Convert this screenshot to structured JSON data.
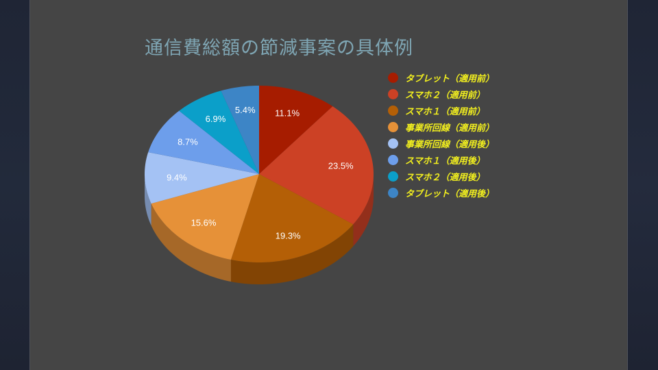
{
  "slide": {
    "title": "通信費総額の節減事案の具体例",
    "background": "#454545",
    "title_color": "#7fa6b4",
    "legend_text_color": "#f2ef1e"
  },
  "legend": [
    {
      "label": "タブレット（適用前）",
      "color": "#a61c00"
    },
    {
      "label": "スマホ２（適用前）",
      "color": "#cc4125"
    },
    {
      "label": "スマホ１（適用前）",
      "color": "#b45f06"
    },
    {
      "label": "事業所回線（適用前）",
      "color": "#e69138"
    },
    {
      "label": "事業所回線（適用後）",
      "color": "#a4c2f4"
    },
    {
      "label": "スマホ１（適用後）",
      "color": "#6d9eeb"
    },
    {
      "label": "スマホ２（適用後）",
      "color": "#0b9fc9"
    },
    {
      "label": "タブレット（適用後）",
      "color": "#3d85c6"
    }
  ],
  "chart_data": {
    "type": "pie",
    "title": "通信費総額の節減事案の具体例",
    "style": "3d",
    "start_angle": "12 o'clock, clockwise",
    "legend_position": "right",
    "categories": [
      "タブレット（適用前）",
      "スマホ２（適用前）",
      "スマホ１（適用前）",
      "事業所回線（適用前）",
      "事業所回線（適用後）",
      "スマホ１（適用後）",
      "スマホ２（適用後）",
      "タブレット（適用後）"
    ],
    "values": [
      11.1,
      23.5,
      19.3,
      15.6,
      9.4,
      8.7,
      6.9,
      5.4
    ],
    "labels": [
      "11.1%",
      "23.5%",
      "19.3%",
      "15.6%",
      "9.4%",
      "8.7%",
      "6.9%",
      "5.4%"
    ],
    "colors": [
      "#a61c00",
      "#cc4125",
      "#b45f06",
      "#e69138",
      "#a4c2f4",
      "#6d9eeb",
      "#0b9fc9",
      "#3d85c6"
    ]
  }
}
